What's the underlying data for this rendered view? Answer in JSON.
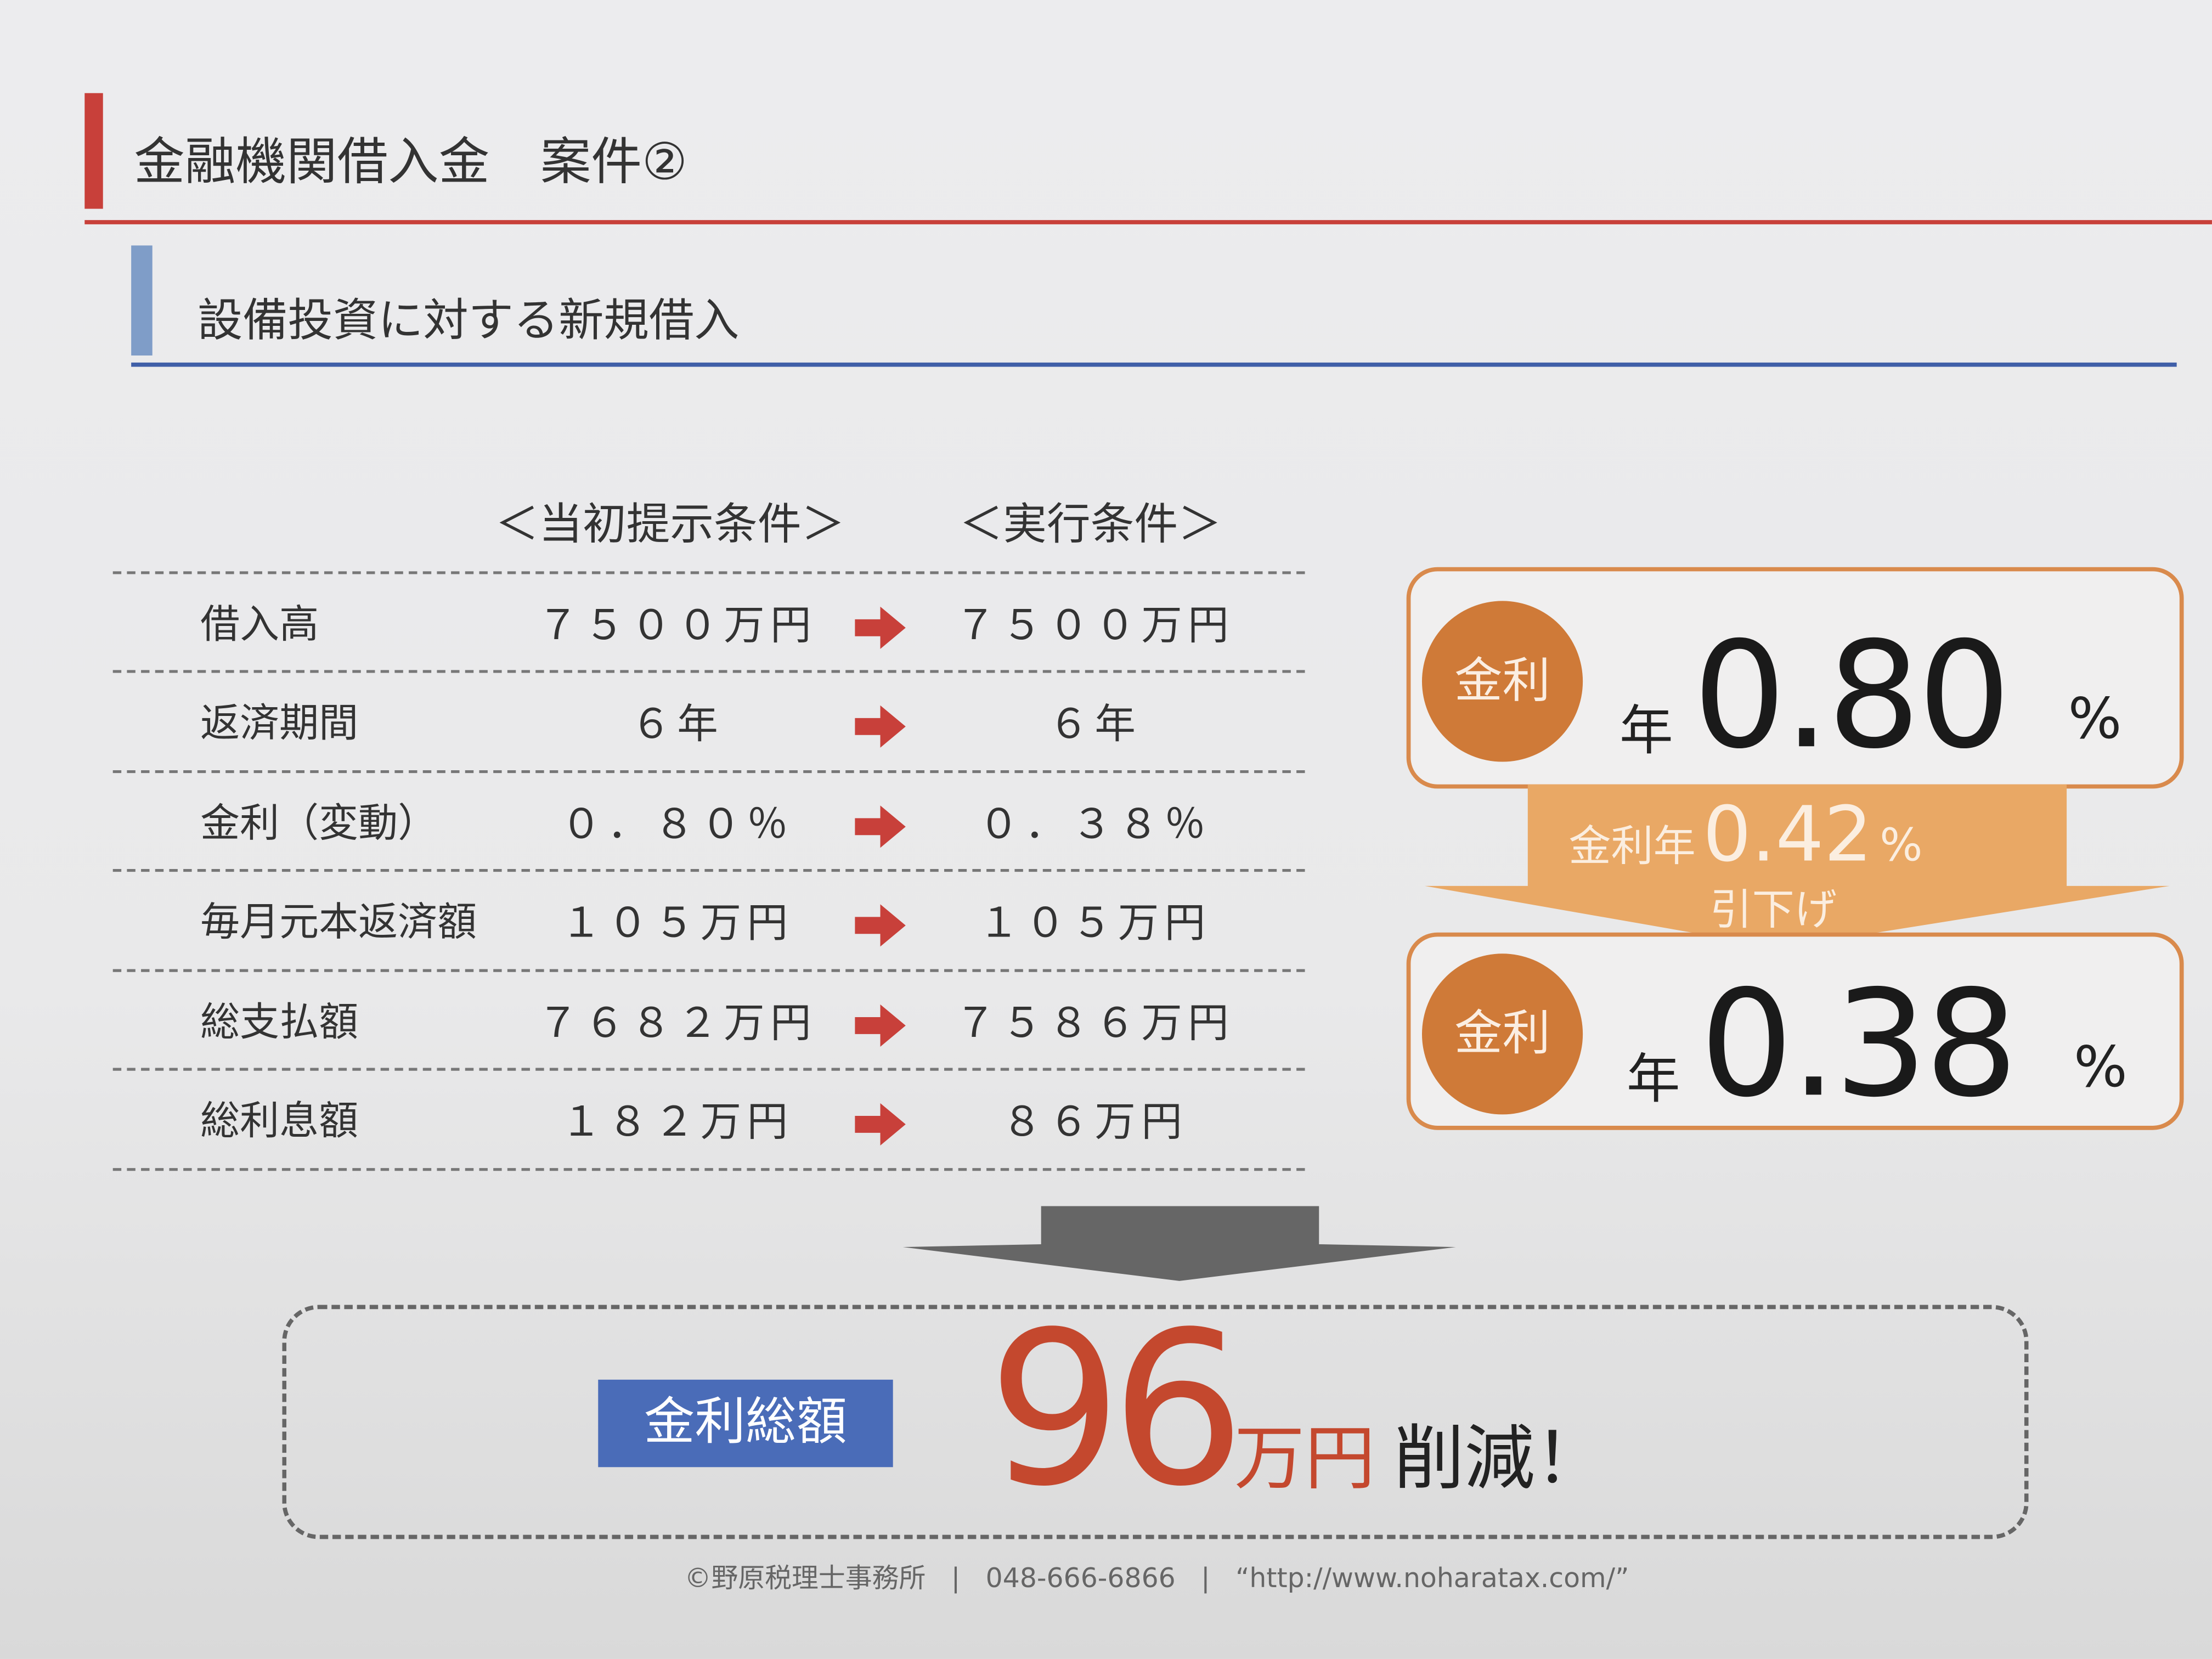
{
  "header": {
    "title": "金融機関借入金　案件②",
    "subtitle": "設備投資に対する新規借入"
  },
  "table": {
    "columns": [
      "＜当初提示条件＞",
      "＜実行条件＞"
    ],
    "rows": [
      {
        "label": "借入高",
        "initial": "７５００万円",
        "actual": "７５００万円"
      },
      {
        "label": "返済期間",
        "initial": "６年",
        "actual": "６年"
      },
      {
        "label": "金利（変動）",
        "initial": "０．８０％",
        "actual": "０．３８％"
      },
      {
        "label": "毎月元本返済額",
        "initial": "１０５万円",
        "actual": "１０５万円"
      },
      {
        "label": "総支払額",
        "initial": "７６８２万円",
        "actual": "７５８６万円"
      },
      {
        "label": "総利息額",
        "initial": "１８２万円",
        "actual": "８６万円"
      }
    ],
    "arrow_icon": "right-arrow-icon"
  },
  "rate_panel": {
    "before": {
      "badge": "金利",
      "prefix": "年",
      "value": "0.80",
      "unit": "%"
    },
    "reduction": {
      "label": "金利年",
      "value": "0.42",
      "unit": "%",
      "caption": "引下げ"
    },
    "after": {
      "badge": "金利",
      "prefix": "年",
      "value": "0.38",
      "unit": "%"
    }
  },
  "result": {
    "badge": "金利総額",
    "amount": "96",
    "unit": "万円",
    "suffix": "削減！"
  },
  "footer": {
    "office": "©野原税理士事務所",
    "phone": "048-666-6866",
    "url": "“http://www.noharatax.com/”"
  },
  "colors": {
    "red": "#c8403a",
    "blue": "#4a6cb8",
    "orange": "#d98a4c",
    "arrow_orange": "#e9a865",
    "amount_red": "#c4482e"
  }
}
